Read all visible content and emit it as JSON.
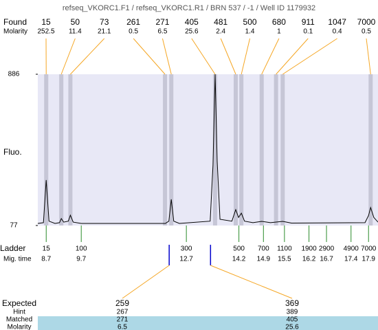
{
  "title": "refseq_VKORC1.F1 / refseq_VKORC1.R1 / BRN 537 / -1 / Well ID 1179932",
  "found": {
    "label": "Found",
    "molarity_label": "Molarity",
    "sizes": [
      15,
      50,
      73,
      261,
      271,
      405,
      481,
      500,
      680,
      911,
      1047,
      7000
    ],
    "molarities": [
      252.5,
      11.4,
      21.1,
      0.5,
      6.5,
      25.6,
      2.4,
      1.4,
      1,
      0.1,
      0.4,
      0.5
    ],
    "times": [
      8.7,
      9.13,
      9.39,
      12.09,
      12.27,
      13.52,
      14.11,
      14.27,
      14.85,
      15.26,
      15.45,
      17.96
    ]
  },
  "plot": {
    "label": "Fluo.",
    "ylim": [
      77,
      886
    ],
    "yticks": [
      886,
      77
    ],
    "xlim": [
      8.46,
      18.17
    ],
    "trace": {
      "time": [
        8.46,
        8.62,
        8.7,
        8.78,
        8.95,
        9.08,
        9.13,
        9.2,
        9.33,
        9.39,
        9.47,
        9.7,
        12.1,
        12.2,
        12.27,
        12.34,
        12.5,
        13.38,
        13.46,
        13.52,
        13.58,
        13.66,
        14.0,
        14.11,
        14.19,
        14.27,
        14.36,
        14.6,
        14.85,
        15.1,
        15.45,
        15.7,
        17.8,
        17.9,
        17.96,
        18.05,
        18.17
      ],
      "fluo": [
        88,
        92,
        320,
        100,
        88,
        92,
        114,
        95,
        100,
        132,
        95,
        88,
        88,
        100,
        217,
        100,
        88,
        100,
        400,
        886,
        420,
        110,
        100,
        162,
        120,
        143,
        100,
        92,
        99,
        92,
        99,
        90,
        92,
        130,
        173,
        120,
        95
      ]
    }
  },
  "ladder": {
    "label": "Ladder",
    "time_label": "Mig. time",
    "sizes": [
      15,
      100,
      300,
      500,
      700,
      1100,
      1900,
      2900,
      4900,
      7000
    ],
    "times": [
      8.7,
      9.7,
      12.7,
      14.2,
      14.9,
      15.5,
      16.2,
      16.7,
      17.4,
      17.9
    ]
  },
  "expected": {
    "label": "Expected",
    "hint_label": "Hint",
    "matched_label": "Matched",
    "molarity_label": "Molarity",
    "items": [
      {
        "expected": 259,
        "hint": 267,
        "matched": 271,
        "molarity": 6.5,
        "time": 12.21
      },
      {
        "expected": 369,
        "hint": 389,
        "matched": 405,
        "molarity": 25.6,
        "time": 13.39
      }
    ]
  }
}
